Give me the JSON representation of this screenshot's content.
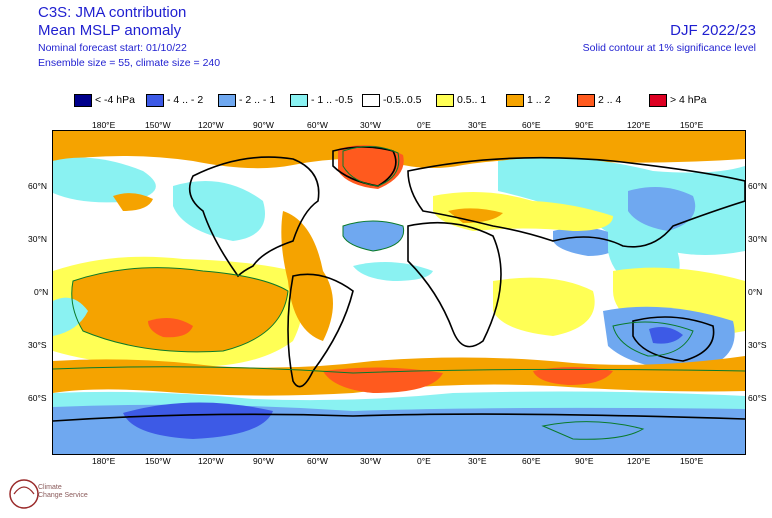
{
  "header": {
    "title": "C3S: JMA contribution",
    "subtitle": "Mean MSLP anomaly",
    "forecast_start": "Nominal forecast start: 01/10/22",
    "ensemble": "Ensemble size = 55, climate size = 240",
    "season": "DJF 2022/23",
    "contour_note": "Solid contour at 1% significance level"
  },
  "legend": [
    {
      "label": "< -4 hPa",
      "color": "#00008b"
    },
    {
      "label": "- 4 .. - 2",
      "color": "#3d5ae6"
    },
    {
      "label": "- 2 .. - 1",
      "color": "#6fa8f0"
    },
    {
      "label": "- 1 .. -0.5",
      "color": "#8af2f2"
    },
    {
      "label": "-0.5..0.5",
      "color": "#ffffff"
    },
    {
      "label": "0.5.. 1",
      "color": "#ffff55"
    },
    {
      "label": "1 .. 2",
      "color": "#f5a300"
    },
    {
      "label": "2 .. 4",
      "color": "#ff5a1e"
    },
    {
      "label": "> 4 hPa",
      "color": "#dd0022"
    }
  ],
  "axes": {
    "longitudes": [
      "180°E",
      "150°W",
      "120°W",
      "90°W",
      "60°W",
      "30°W",
      "0°E",
      "30°E",
      "60°E",
      "90°E",
      "120°E",
      "150°E"
    ],
    "latitudes": [
      "60°N",
      "30°N",
      "0°N",
      "30°S",
      "60°S"
    ]
  },
  "logo": {
    "line1": "Climate",
    "line2": "Change Service"
  }
}
